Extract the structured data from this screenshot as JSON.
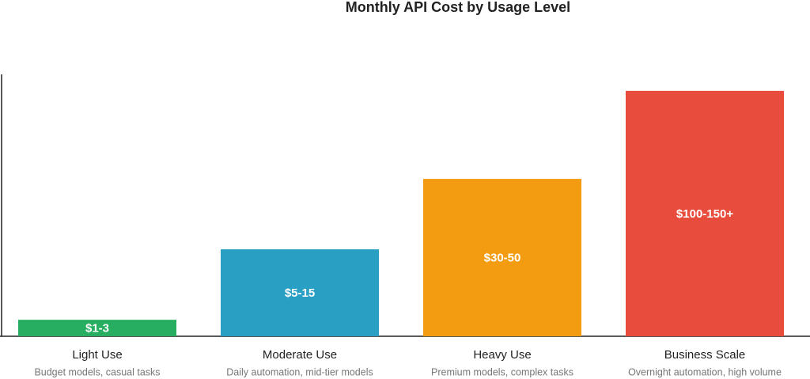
{
  "chart_data": {
    "type": "bar",
    "title": "Monthly API Cost by Usage Level",
    "categories": [
      "Light Use",
      "Moderate Use",
      "Heavy Use",
      "Business Scale"
    ],
    "subtitles": [
      "Budget models, casual tasks",
      "Daily automation, mid-tier models",
      "Premium models, complex tasks",
      "Overnight automation, high volume"
    ],
    "values": [
      6.3,
      33.2,
      60.1,
      93.7
    ],
    "bar_labels": [
      "$1-3",
      "$5-15",
      "$30-50",
      "$100-150+"
    ],
    "colors": [
      "#27ae60",
      "#2a9fc4",
      "#f39c12",
      "#e74c3c"
    ],
    "ylim": [
      0,
      100
    ]
  }
}
